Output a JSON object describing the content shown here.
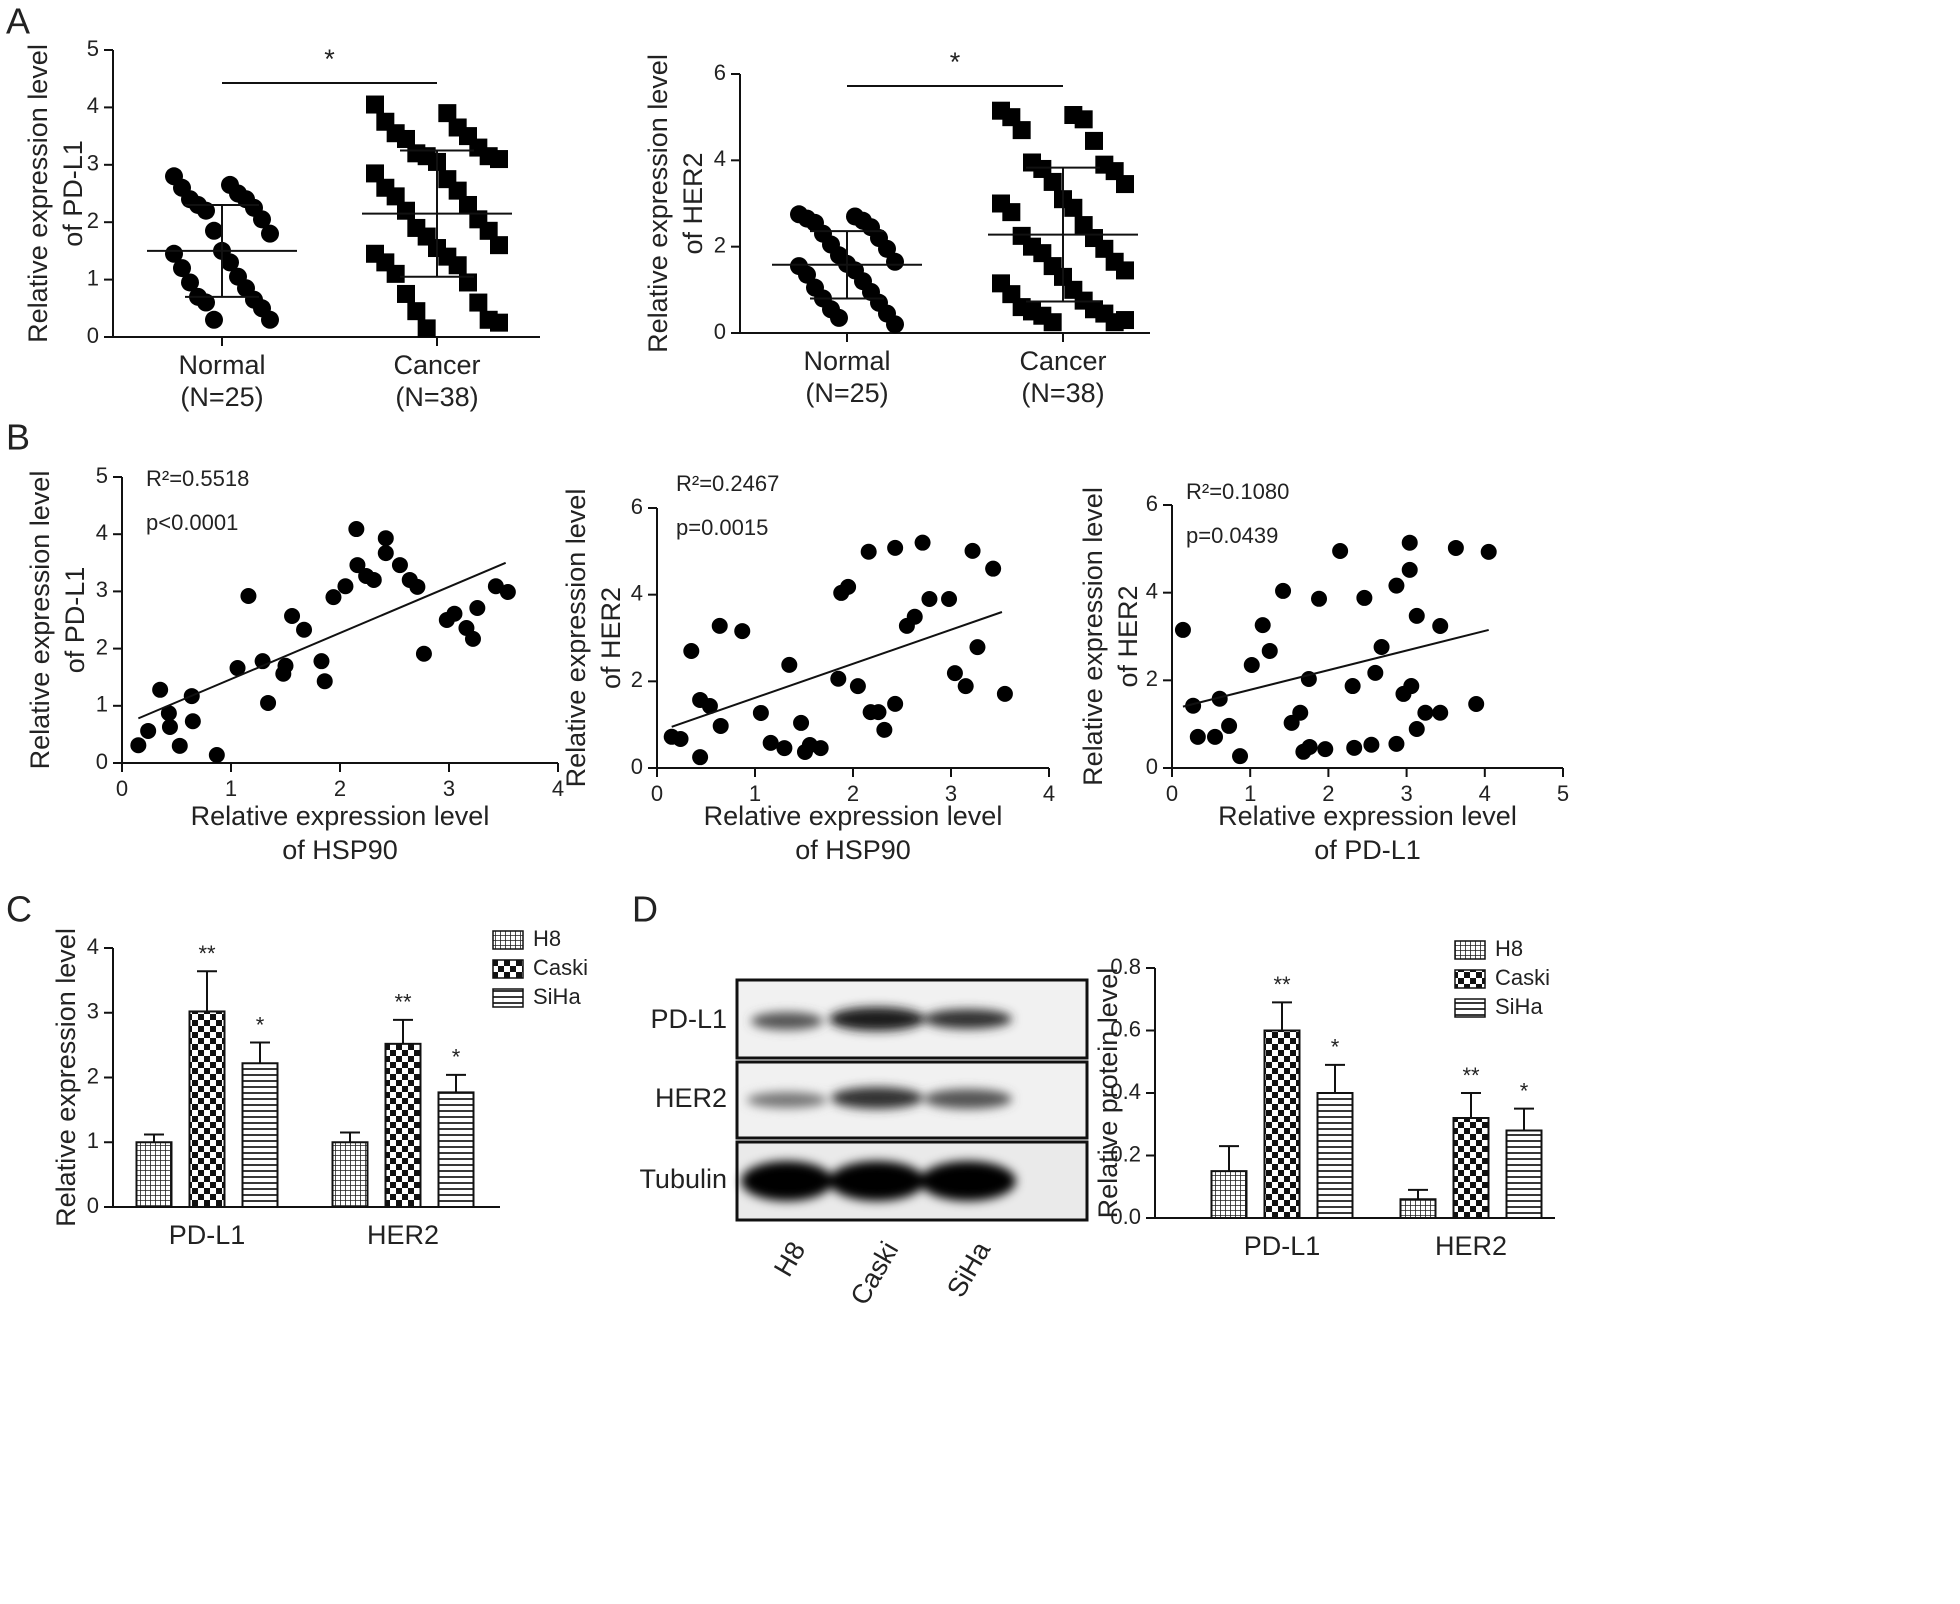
{
  "panel_labels": [
    "A",
    "B",
    "C",
    "D"
  ],
  "blot": {
    "row_labels": [
      "PD-L1",
      "HER2",
      "Tubulin"
    ],
    "lane_labels": [
      "H8",
      "Caski",
      "SiHa"
    ]
  },
  "chart_data": [
    {
      "type": "dotplot",
      "ylabel": [
        "Relative expression level",
        "of PD-L1"
      ],
      "categories": [
        "Normal",
        "Cancer"
      ],
      "sublabels": [
        "(N=25)",
        "(N=38)"
      ],
      "markers": [
        "circle",
        "square"
      ],
      "values": [
        [
          2.8,
          2.65,
          2.6,
          2.5,
          2.4,
          2.4,
          2.3,
          2.25,
          2.2,
          2.05,
          1.85,
          1.8,
          1.5,
          1.45,
          1.3,
          1.2,
          1.05,
          0.95,
          0.85,
          0.7,
          0.65,
          0.6,
          0.5,
          0.3,
          0.3
        ],
        [
          4.05,
          3.9,
          3.75,
          3.65,
          3.55,
          3.5,
          3.45,
          3.3,
          3.2,
          3.15,
          3.15,
          3.1,
          3.05,
          2.85,
          2.75,
          2.6,
          2.55,
          2.45,
          2.3,
          2.2,
          2.05,
          1.9,
          1.85,
          1.75,
          1.6,
          1.55,
          1.45,
          1.4,
          1.3,
          1.25,
          1.1,
          0.95,
          0.75,
          0.6,
          0.45,
          0.3,
          0.15,
          0.25
        ]
      ],
      "mean": [
        1.5,
        2.15
      ],
      "sd": [
        0.8,
        1.1
      ],
      "significance": "*",
      "ylim": [
        0,
        5
      ],
      "yticks": [
        0,
        1,
        2,
        3,
        4,
        5
      ]
    },
    {
      "type": "dotplot",
      "ylabel": [
        "Relative expression level",
        "of HER2"
      ],
      "categories": [
        "Normal",
        "Cancer"
      ],
      "sublabels": [
        "(N=25)",
        "(N=38)"
      ],
      "markers": [
        "circle",
        "square"
      ],
      "values": [
        [
          2.75,
          2.7,
          2.65,
          2.6,
          2.55,
          2.45,
          2.3,
          2.2,
          2.05,
          1.95,
          1.8,
          1.65,
          1.6,
          1.55,
          1.45,
          1.35,
          1.2,
          1.05,
          0.95,
          0.8,
          0.7,
          0.55,
          0.45,
          0.35,
          0.2
        ],
        [
          5.15,
          5.05,
          5.0,
          4.95,
          4.7,
          4.45,
          3.95,
          3.9,
          3.8,
          3.75,
          3.5,
          3.45,
          3.1,
          3.0,
          2.9,
          2.8,
          2.5,
          2.25,
          2.2,
          2.0,
          1.95,
          1.85,
          1.65,
          1.55,
          1.45,
          1.3,
          1.15,
          1.0,
          0.9,
          0.75,
          0.6,
          0.55,
          0.5,
          0.45,
          0.4,
          0.25,
          0.25,
          0.3
        ]
      ],
      "mean": [
        1.58,
        2.28
      ],
      "sd": [
        0.78,
        1.55
      ],
      "significance": "*",
      "ylim": [
        0,
        6
      ],
      "yticks": [
        0,
        2,
        4,
        6
      ]
    },
    {
      "type": "scatter",
      "xlabel": [
        "Relative expression level",
        "of HSP90"
      ],
      "ylabel": [
        "Relative expression level",
        "of PD-L1"
      ],
      "annotations": [
        "R²=0.5518",
        "p<0.0001"
      ],
      "x": [
        0.15,
        0.24,
        0.35,
        0.43,
        0.44,
        0.53,
        0.64,
        0.65,
        0.87,
        1.06,
        1.16,
        1.29,
        1.34,
        1.48,
        1.5,
        1.56,
        1.67,
        1.83,
        1.86,
        1.94,
        2.05,
        2.15,
        2.16,
        2.24,
        2.31,
        2.42,
        2.42,
        2.55,
        2.64,
        2.71,
        2.77,
        2.98,
        3.05,
        3.16,
        3.22,
        3.26,
        3.43,
        3.54
      ],
      "values": [
        0.31,
        0.56,
        1.28,
        0.87,
        0.63,
        0.3,
        1.17,
        0.73,
        0.14,
        1.66,
        2.92,
        1.78,
        1.05,
        1.56,
        1.7,
        2.57,
        2.33,
        1.78,
        1.43,
        2.9,
        3.09,
        4.09,
        3.46,
        3.27,
        3.2,
        3.93,
        3.67,
        3.46,
        3.2,
        3.08,
        1.91,
        2.5,
        2.61,
        2.36,
        2.17,
        2.71,
        3.09,
        2.99
      ],
      "trend_line": {
        "x": [
          0.15,
          3.52
        ],
        "values": [
          0.78,
          3.5
        ]
      },
      "xlim": [
        0,
        4
      ],
      "xticks": [
        0,
        1,
        2,
        3,
        4
      ],
      "ylim": [
        0,
        5
      ],
      "yticks": [
        0,
        1,
        2,
        3,
        4,
        5
      ]
    },
    {
      "type": "scatter",
      "xlabel": [
        "Relative expression level",
        "of HSP90"
      ],
      "ylabel": [
        "Relative expression level",
        "of HER2"
      ],
      "annotations": [
        "R²=0.2467",
        "p=0.0015"
      ],
      "x": [
        0.15,
        0.24,
        0.35,
        0.44,
        0.44,
        0.54,
        0.64,
        0.65,
        0.87,
        1.06,
        1.16,
        1.3,
        1.35,
        1.47,
        1.51,
        1.56,
        1.67,
        1.85,
        1.88,
        1.95,
        2.05,
        2.16,
        2.18,
        2.26,
        2.32,
        2.43,
        2.43,
        2.55,
        2.63,
        2.71,
        2.78,
        2.98,
        3.04,
        3.15,
        3.22,
        3.27,
        3.43,
        3.55
      ],
      "values": [
        0.72,
        0.67,
        2.7,
        1.57,
        0.25,
        1.43,
        3.28,
        0.97,
        3.16,
        1.27,
        0.58,
        0.46,
        2.38,
        1.04,
        0.37,
        0.53,
        0.46,
        2.06,
        4.04,
        4.18,
        1.89,
        4.99,
        1.29,
        1.29,
        0.88,
        5.08,
        1.48,
        3.28,
        3.49,
        5.2,
        3.9,
        3.9,
        2.19,
        1.89,
        5.01,
        2.79,
        4.6,
        1.71
      ],
      "trend_line": {
        "x": [
          0.15,
          3.52
        ],
        "values": [
          0.95,
          3.6
        ]
      },
      "xlim": [
        0,
        4
      ],
      "xticks": [
        0,
        1,
        2,
        3,
        4
      ],
      "ylim": [
        0,
        6
      ],
      "yticks": [
        0,
        2,
        4,
        6
      ]
    },
    {
      "type": "scatter",
      "xlabel": [
        "Relative expression level",
        "of PD-L1"
      ],
      "ylabel": [
        "Relative expression level",
        "of HER2"
      ],
      "annotations": [
        "R²=0.1080",
        "p=0.0439"
      ],
      "x": [
        0.14,
        0.27,
        0.33,
        0.55,
        0.61,
        0.73,
        0.87,
        1.02,
        1.16,
        1.25,
        1.42,
        1.53,
        1.64,
        1.68,
        1.75,
        1.76,
        1.88,
        1.96,
        2.15,
        2.31,
        2.33,
        2.46,
        2.55,
        2.6,
        2.68,
        2.87,
        2.87,
        2.96,
        3.04,
        3.04,
        3.06,
        3.13,
        3.13,
        3.24,
        3.43,
        3.43,
        3.63,
        3.89,
        4.05
      ],
      "values": [
        3.15,
        1.42,
        0.71,
        0.71,
        1.58,
        0.96,
        0.27,
        2.35,
        3.26,
        2.67,
        4.04,
        1.03,
        1.26,
        0.37,
        2.03,
        0.48,
        3.86,
        0.43,
        4.95,
        1.87,
        0.46,
        3.88,
        0.53,
        2.17,
        2.76,
        0.55,
        4.16,
        1.69,
        5.14,
        4.52,
        1.87,
        3.47,
        0.89,
        1.26,
        1.26,
        3.24,
        5.02,
        1.46,
        4.93
      ],
      "trend_line": {
        "x": [
          0.14,
          4.05
        ],
        "values": [
          1.4,
          3.15
        ]
      },
      "xlim": [
        0,
        5
      ],
      "xticks": [
        0,
        1,
        2,
        3,
        4,
        5
      ],
      "ylim": [
        0,
        6
      ],
      "yticks": [
        0,
        2,
        4,
        6
      ]
    },
    {
      "type": "bar",
      "ylabel": "Relative expression level",
      "categories": [
        "PD-L1",
        "HER2"
      ],
      "series": [
        {
          "name": "H8",
          "pattern": "crosshatch",
          "values": [
            1.0,
            1.0
          ],
          "errors": [
            0.12,
            0.15
          ]
        },
        {
          "name": "Caski",
          "pattern": "checker",
          "values": [
            3.02,
            2.52
          ],
          "errors": [
            0.62,
            0.37
          ],
          "stars": [
            "**",
            "**"
          ]
        },
        {
          "name": "SiHa",
          "pattern": "hlines",
          "values": [
            2.22,
            1.77
          ],
          "errors": [
            0.32,
            0.27
          ],
          "stars": [
            "*",
            "*"
          ]
        }
      ],
      "ylim": [
        0,
        4
      ],
      "yticks": [
        0,
        1,
        2,
        3,
        4
      ]
    },
    {
      "type": "bar",
      "ylabel": "Relative protein level",
      "categories": [
        "PD-L1",
        "HER2"
      ],
      "series": [
        {
          "name": "H8",
          "pattern": "crosshatch",
          "values": [
            0.15,
            0.06
          ],
          "errors": [
            0.08,
            0.03
          ]
        },
        {
          "name": "Caski",
          "pattern": "checker",
          "values": [
            0.6,
            0.32
          ],
          "errors": [
            0.09,
            0.08
          ],
          "stars": [
            "**",
            "**"
          ]
        },
        {
          "name": "SiHa",
          "pattern": "hlines",
          "values": [
            0.4,
            0.28
          ],
          "errors": [
            0.09,
            0.07
          ],
          "stars": [
            "*",
            "*"
          ]
        }
      ],
      "ylim": [
        0,
        0.8
      ],
      "yticks": [
        {
          "value": 0,
          "label": "0.0"
        },
        0.2,
        0.4,
        0.6,
        0.8
      ]
    }
  ]
}
